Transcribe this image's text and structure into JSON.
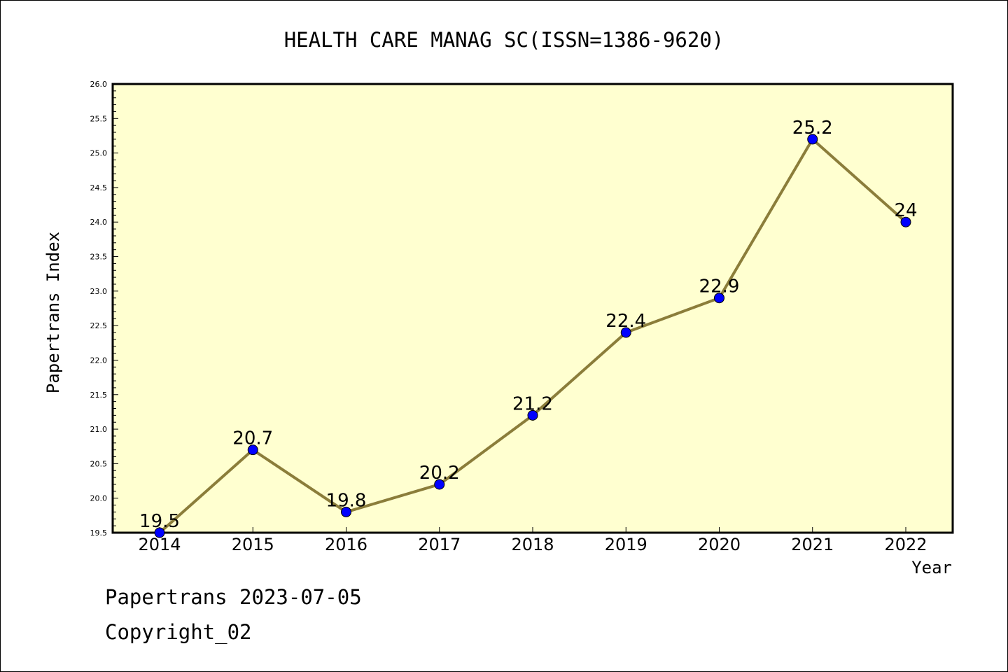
{
  "chart_data": {
    "type": "line",
    "title": "HEALTH CARE MANAG SC(ISSN=1386-9620)",
    "xlabel": "Year",
    "ylabel": "Papertrans Index",
    "x": [
      "2014",
      "2015",
      "2016",
      "2017",
      "2018",
      "2019",
      "2020",
      "2021",
      "2022"
    ],
    "values": [
      19.5,
      20.7,
      19.8,
      20.2,
      21.2,
      22.4,
      22.9,
      25.2,
      24
    ],
    "data_labels": [
      "19.5",
      "20.7",
      "19.8",
      "20.2",
      "21.2",
      "22.4",
      "22.9",
      "25.2",
      "24"
    ],
    "ylim": [
      19.5,
      26.0
    ],
    "y_ticks": [
      "19.5",
      "20.0",
      "20.5",
      "21.0",
      "21.5",
      "22.0",
      "22.5",
      "23.0",
      "23.5",
      "24.0",
      "24.5",
      "25.0",
      "25.5",
      "26.0"
    ],
    "grid": false,
    "colors": {
      "plot_background": "#ffffd0",
      "line": "#8b7d3a",
      "marker": "#0000ff"
    }
  },
  "footer": {
    "date_text": "Papertrans 2023-07-05",
    "copyright_text": "Copyright_02"
  }
}
